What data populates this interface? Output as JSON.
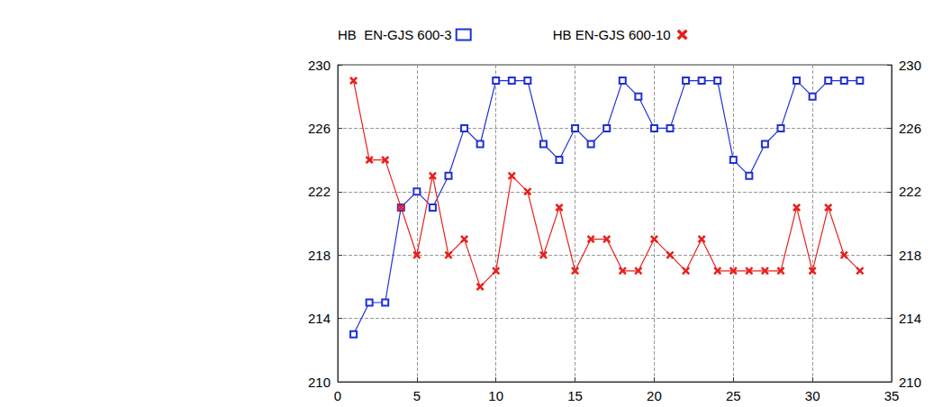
{
  "chart_data": {
    "type": "line",
    "x": [
      1,
      2,
      3,
      4,
      5,
      6,
      7,
      8,
      9,
      10,
      11,
      12,
      13,
      14,
      15,
      16,
      17,
      18,
      19,
      20,
      21,
      22,
      23,
      24,
      25,
      26,
      27,
      28,
      29,
      30,
      31,
      32,
      33
    ],
    "series": [
      {
        "name": "HB  EN-GJS 600-3",
        "color": "#2030d8",
        "marker": "square",
        "values": [
          213,
          215,
          215,
          221,
          222,
          221,
          223,
          226,
          225,
          229,
          229,
          229,
          225,
          224,
          226,
          225,
          226,
          229,
          228,
          226,
          226,
          229,
          229,
          229,
          224,
          223,
          225,
          226,
          229,
          228,
          229,
          229,
          229
        ]
      },
      {
        "name": "HB EN-GJS 600-10",
        "color": "#e8201c",
        "marker": "x",
        "values": [
          229,
          224,
          224,
          221,
          218,
          223,
          218,
          219,
          216,
          217,
          223,
          222,
          218,
          221,
          217,
          219,
          219,
          217,
          217,
          219,
          218,
          217,
          219,
          217,
          217,
          217,
          217,
          217,
          221,
          217,
          221,
          218,
          217
        ]
      }
    ],
    "xlim": [
      0,
      35
    ],
    "xticks": [
      0,
      5,
      10,
      15,
      20,
      25,
      30,
      35
    ],
    "ylim": [
      210,
      230
    ],
    "yticks": [
      210,
      214,
      218,
      222,
      226,
      230
    ],
    "y2lim": [
      210,
      230
    ],
    "y2ticks": [
      210,
      214,
      218,
      222,
      226,
      230
    ],
    "grid": true,
    "legend": "top"
  }
}
